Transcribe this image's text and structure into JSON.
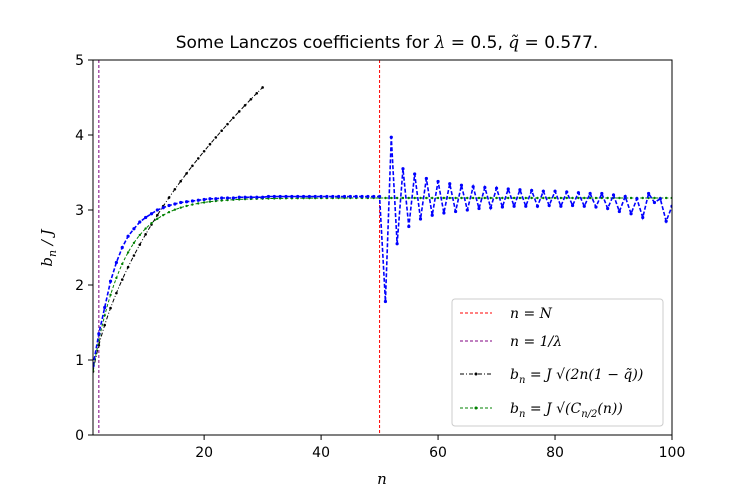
{
  "chart_data": {
    "type": "line",
    "title": "Some Lanczos coefficients for λ = 0.5, q̃ = 0.577.",
    "xlabel": "n",
    "ylabel": "b_n / J",
    "xlim": [
      1,
      100
    ],
    "ylim": [
      0,
      5
    ],
    "xticks": [
      20,
      40,
      60,
      80,
      100
    ],
    "yticks": [
      0,
      1,
      2,
      3,
      4,
      5
    ],
    "grid": false,
    "legend_position": "lower-right",
    "vlines": [
      {
        "name": "n = N",
        "x": 50,
        "color": "#ff0000"
      },
      {
        "name": "n = 1/λ",
        "x": 2,
        "color": "#800080"
      }
    ],
    "series": [
      {
        "name": "b_n",
        "color": "#0000ff",
        "style": "dashed-markers",
        "x": [
          1,
          2,
          3,
          4,
          5,
          6,
          7,
          8,
          9,
          10,
          11,
          12,
          13,
          14,
          15,
          16,
          17,
          18,
          19,
          20,
          21,
          22,
          23,
          24,
          25,
          26,
          27,
          28,
          29,
          30,
          31,
          32,
          33,
          34,
          35,
          36,
          37,
          38,
          39,
          40,
          41,
          42,
          43,
          44,
          45,
          46,
          47,
          48,
          49,
          50,
          51,
          52,
          53,
          54,
          55,
          56,
          57,
          58,
          59,
          60,
          61,
          62,
          63,
          64,
          65,
          66,
          67,
          68,
          69,
          70,
          71,
          72,
          73,
          74,
          75,
          76,
          77,
          78,
          79,
          80,
          81,
          82,
          83,
          84,
          85,
          86,
          87,
          88,
          89,
          90,
          91,
          92,
          93,
          94,
          95,
          96,
          97,
          98,
          99,
          100
        ],
        "values": [
          0.92,
          1.35,
          1.7,
          2.05,
          2.3,
          2.5,
          2.65,
          2.75,
          2.84,
          2.9,
          2.95,
          3.0,
          3.03,
          3.06,
          3.08,
          3.1,
          3.11,
          3.12,
          3.13,
          3.14,
          3.15,
          3.15,
          3.16,
          3.16,
          3.16,
          3.17,
          3.17,
          3.17,
          3.17,
          3.17,
          3.18,
          3.18,
          3.18,
          3.18,
          3.18,
          3.18,
          3.18,
          3.18,
          3.18,
          3.18,
          3.18,
          3.18,
          3.18,
          3.18,
          3.18,
          3.18,
          3.18,
          3.18,
          3.18,
          3.18,
          1.78,
          3.97,
          2.55,
          3.55,
          2.78,
          3.48,
          2.88,
          3.42,
          2.93,
          3.38,
          2.96,
          3.35,
          2.98,
          3.33,
          3.0,
          3.31,
          3.02,
          3.3,
          3.03,
          3.29,
          3.04,
          3.28,
          3.05,
          3.27,
          3.05,
          3.26,
          3.05,
          3.25,
          3.06,
          3.25,
          3.05,
          3.24,
          3.06,
          3.23,
          3.05,
          3.22,
          3.04,
          3.22,
          3.02,
          3.2,
          2.98,
          3.18,
          2.95,
          3.15,
          2.9,
          3.22,
          3.1,
          3.15,
          2.85,
          3.05
        ]
      },
      {
        "name": "b_n = J √(2n(1 − q̃))",
        "color": "#000000",
        "style": "dashdot-markers",
        "formula_coefficient": 0.846,
        "x_range": [
          1,
          30
        ]
      },
      {
        "name": "b_n = J √(C_{n/2}(n))",
        "color": "#008000",
        "style": "dashed-markers",
        "x_range": [
          1,
          100
        ]
      }
    ]
  }
}
